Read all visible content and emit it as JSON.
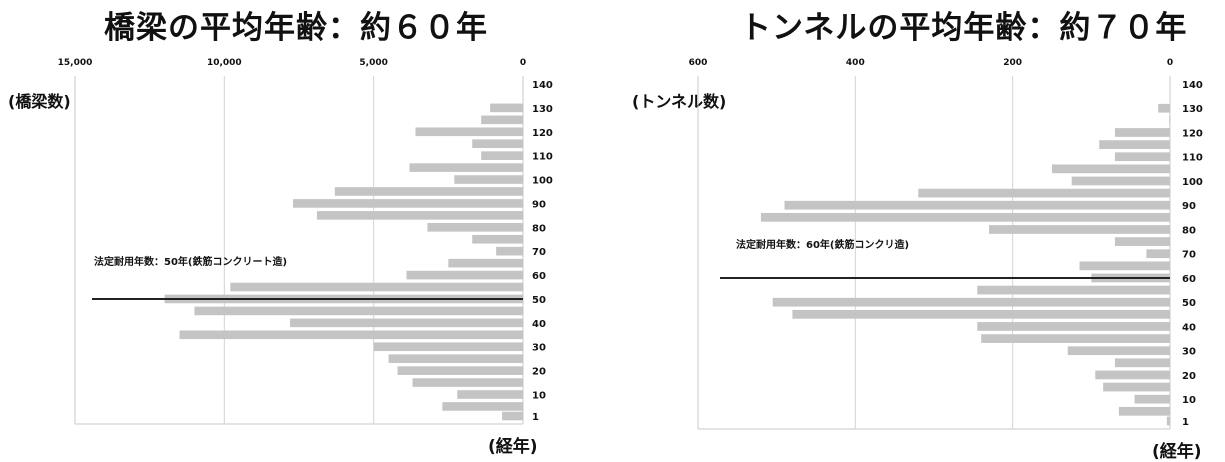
{
  "colors": {
    "bar": "#c4c4c4",
    "frame": "#c8c8c8",
    "gridline": "#d4d4d4",
    "reference_line": "#222222"
  },
  "chart_data": [
    {
      "type": "bar",
      "orientation": "horizontal",
      "x_direction": "reversed",
      "title": "橋梁の平均年齢：約６０年",
      "xlabel": "(経年)",
      "ylabel": "(橋梁数)",
      "xlim": [
        0,
        15000
      ],
      "x_ticks": [
        0,
        5000,
        10000,
        15000
      ],
      "x_tick_labels": [
        "0",
        "5,000",
        "10,000",
        "15,000"
      ],
      "y_ticks": [
        1,
        10,
        20,
        30,
        40,
        50,
        60,
        70,
        80,
        90,
        100,
        110,
        120,
        130,
        140
      ],
      "grid": true,
      "reference_line": {
        "y": 50,
        "label": "法定耐用年数：50年(鉄筋コンクリート造)"
      },
      "categories": [
        "1",
        "5",
        "10",
        "15",
        "20",
        "25",
        "30",
        "35",
        "40",
        "45",
        "50",
        "55",
        "60",
        "65",
        "70",
        "75",
        "80",
        "85",
        "90",
        "95",
        "100",
        "105",
        "110",
        "115",
        "120",
        "125",
        "130",
        "135",
        "140"
      ],
      "values": [
        700,
        2700,
        2200,
        3700,
        4200,
        4500,
        5000,
        11500,
        7800,
        11000,
        12000,
        9800,
        3900,
        2500,
        900,
        1700,
        3200,
        6900,
        7700,
        6300,
        2300,
        3800,
        1400,
        1700,
        3600,
        1400,
        1100,
        0,
        0
      ]
    },
    {
      "type": "bar",
      "orientation": "horizontal",
      "x_direction": "reversed",
      "title": "トンネルの平均年齢：約７０年",
      "xlabel": "(経年)",
      "ylabel": "(トンネル数)",
      "xlim": [
        0,
        600
      ],
      "x_ticks": [
        0,
        200,
        400,
        600
      ],
      "x_tick_labels": [
        "0",
        "200",
        "400",
        "600"
      ],
      "y_ticks": [
        1,
        10,
        20,
        30,
        40,
        50,
        60,
        70,
        80,
        90,
        100,
        110,
        120,
        130,
        140
      ],
      "grid": true,
      "reference_line": {
        "y": 60,
        "label": "法定耐用年数：60年(鉄筋コンクリ造)"
      },
      "categories": [
        "1",
        "5",
        "10",
        "15",
        "20",
        "25",
        "30",
        "35",
        "40",
        "45",
        "50",
        "55",
        "60",
        "65",
        "70",
        "75",
        "80",
        "85",
        "90",
        "95",
        "100",
        "105",
        "110",
        "115",
        "120",
        "125",
        "130",
        "135",
        "140"
      ],
      "values": [
        4,
        65,
        45,
        85,
        95,
        70,
        130,
        240,
        245,
        480,
        505,
        245,
        100,
        115,
        30,
        70,
        230,
        520,
        490,
        320,
        125,
        150,
        70,
        90,
        70,
        1,
        15,
        0,
        0
      ]
    }
  ]
}
